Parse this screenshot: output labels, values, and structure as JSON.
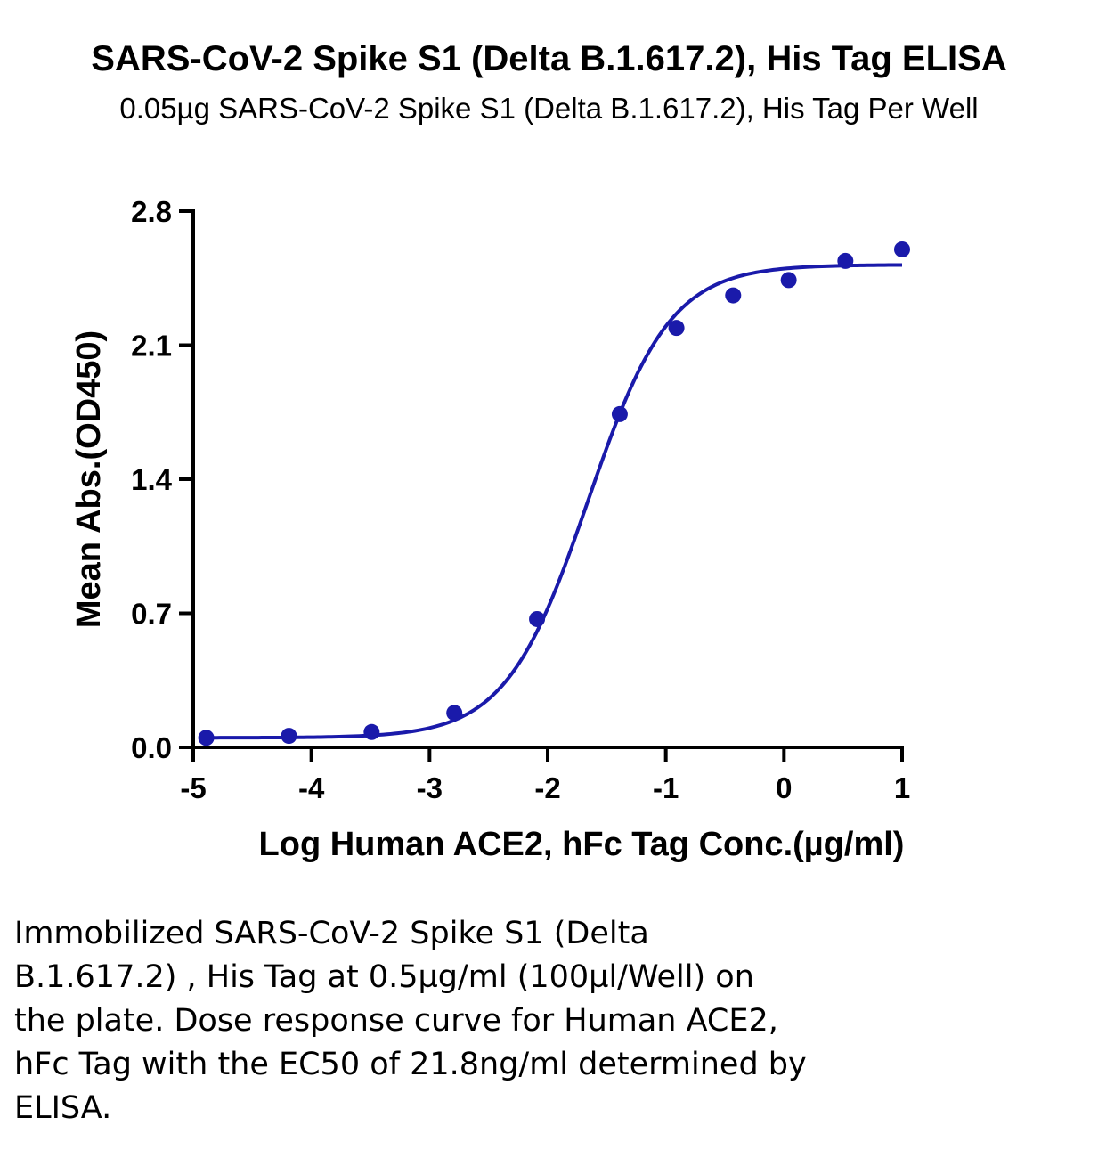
{
  "caption": {
    "lines": [
      "Immobilized SARS-CoV-2 Spike S1 (Delta",
      "B.1.617.2) , His Tag at 0.5µg/ml (100µl/Well) on",
      "the plate. Dose response curve for Human ACE2,",
      "hFc Tag with the EC50 of 21.8ng/ml determined by",
      "ELISA."
    ]
  },
  "chart_data": {
    "type": "scatter",
    "title": "SARS-CoV-2 Spike S1 (Delta B.1.617.2), His Tag ELISA",
    "subtitle": "0.05µg SARS-CoV-2 Spike S1 (Delta B.1.617.2), His Tag Per Well",
    "xlabel": "Log Human ACE2, hFc Tag Conc.(µg/ml)",
    "ylabel": "Mean Abs.(OD450)",
    "xlim": [
      -5,
      1
    ],
    "ylim": [
      0,
      2.8
    ],
    "xticks": [
      "-5",
      "-4",
      "-3",
      "-2",
      "-1",
      "0",
      "1"
    ],
    "yticks": [
      "0.0",
      "0.7",
      "1.4",
      "2.1",
      "2.8"
    ],
    "grid": false,
    "legend": "none",
    "color": "#1a1aaa",
    "points": {
      "x": [
        -4.89,
        -4.19,
        -3.49,
        -2.79,
        -2.09,
        -1.39,
        -0.91,
        -0.43,
        0.04,
        0.52,
        1.0
      ],
      "y": [
        0.05,
        0.06,
        0.08,
        0.18,
        0.67,
        1.74,
        2.19,
        2.36,
        2.44,
        2.54,
        2.6
      ]
    },
    "fit": {
      "model": "4PL",
      "bottom": 0.05,
      "top": 2.52,
      "log_ec50": -1.66,
      "hill": 1.25,
      "x_range": [
        -4.89,
        1.0
      ]
    }
  }
}
